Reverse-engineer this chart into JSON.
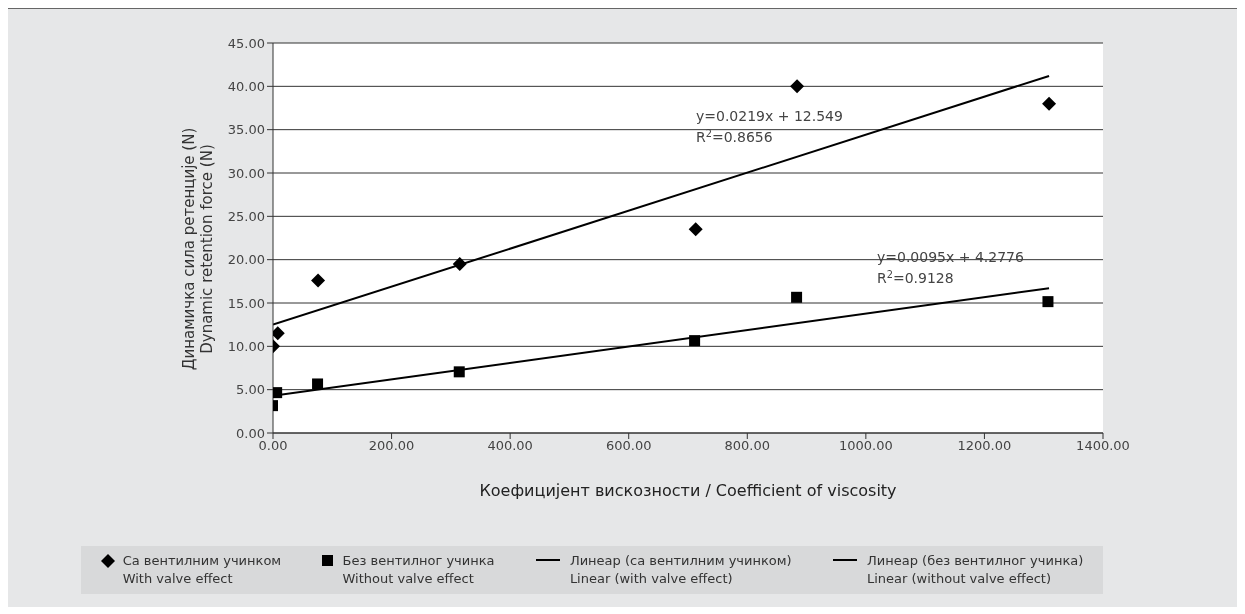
{
  "chart_data": {
    "type": "scatter",
    "xlabel": "Коефицијент вискозности / Coefficient of viscosity",
    "ylabel": "Динамичка сила ретенције (N)\nDynamic retention force (N)",
    "xlim": [
      0,
      1400
    ],
    "xticks": [
      {
        "value": 0,
        "label": "0.00"
      },
      {
        "value": 200,
        "label": "200.00"
      },
      {
        "value": 400,
        "label": "400.00"
      },
      {
        "value": 600,
        "label": "600.00"
      },
      {
        "value": 800,
        "label": "800.00"
      },
      {
        "value": 1000,
        "label": "1000.00"
      },
      {
        "value": 1200,
        "label": "1200.00"
      },
      {
        "value": 1400,
        "label": "1400.00"
      }
    ],
    "ylim": [
      0,
      45
    ],
    "yticks": [
      {
        "value": 0,
        "label": "0.00"
      },
      {
        "value": 5,
        "label": "5.00"
      },
      {
        "value": 10,
        "label": "10.00"
      },
      {
        "value": 15,
        "label": "15.00"
      },
      {
        "value": 20,
        "label": "20.00"
      },
      {
        "value": 25,
        "label": "25.00"
      },
      {
        "value": 30,
        "label": "30.00"
      },
      {
        "value": 35,
        "label": "35.00"
      },
      {
        "value": 40,
        "label": "40.00"
      },
      {
        "value": 45,
        "label": "45.00"
      }
    ],
    "grid": "y",
    "legend": "bottom",
    "series": [
      {
        "name": "Са вентилним учинком\nWith valve effect",
        "marker": "diamond",
        "color": "#000000",
        "x": [
          0,
          8,
          76,
          315,
          713,
          884,
          1309
        ],
        "values": [
          10.0,
          11.5,
          17.6,
          19.5,
          23.5,
          40.0,
          38.0
        ]
      },
      {
        "name": "Без вентилног учинка\nWithout valve effect",
        "marker": "square",
        "color": "#000000",
        "x": [
          0,
          7,
          76,
          315,
          712,
          884,
          1308
        ],
        "values": [
          3.1,
          4.6,
          5.6,
          7.0,
          10.6,
          15.6,
          15.1
        ]
      },
      {
        "name": "Линеар (са вентилним учинком)\nLinear (with valve effect)",
        "type": "line",
        "color": "#000000",
        "x": [
          0,
          1309
        ],
        "values": [
          12.5,
          41.2
        ]
      },
      {
        "name": "Линеар (без вентилног учинка)\nLinear (without valve effect)",
        "type": "line",
        "color": "#000000",
        "x": [
          0,
          1309
        ],
        "values": [
          4.3,
          16.7
        ]
      }
    ],
    "annotations": [
      "y=0.0219x + 12.549",
      "R$^{2}$=0.8656",
      "y=0.0095x + 4.2776",
      "R$^{2}$=0.9128"
    ]
  }
}
